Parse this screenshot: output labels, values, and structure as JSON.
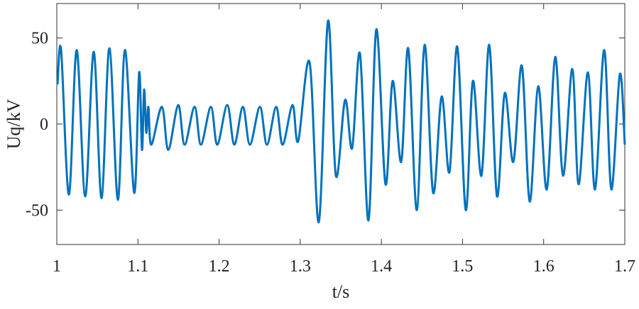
{
  "chart_data": {
    "type": "line",
    "xlabel": "t/s",
    "ylabel": "Uq/kV",
    "xlim": [
      1,
      1.7
    ],
    "ylim": [
      -70,
      70
    ],
    "xticks": [
      1,
      1.1,
      1.2,
      1.3,
      1.4,
      1.5,
      1.6,
      1.7
    ],
    "yticks": [
      -50,
      0,
      50
    ],
    "series": [
      {
        "color": "#0072BD",
        "x": [
          1.0009,
          1.0053,
          1.0149,
          1.0245,
          1.035,
          1.0455,
          1.0551,
          1.0648,
          1.0753,
          1.084,
          1.0954,
          1.1015,
          1.105,
          1.1076,
          1.1103,
          1.1129,
          1.1164,
          1.1295,
          1.1374,
          1.1496,
          1.1575,
          1.1698,
          1.1776,
          1.1899,
          1.1978,
          1.21,
          1.2188,
          1.2293,
          1.238,
          1.2503,
          1.259,
          1.2704,
          1.2783,
          1.2905,
          1.2975,
          1.3115,
          1.3229,
          1.3343,
          1.3439,
          1.3553,
          1.364,
          1.3736,
          1.3841,
          1.3938,
          1.4051,
          1.4139,
          1.4244,
          1.4331,
          1.4436,
          1.4533,
          1.4638,
          1.4743,
          1.4839,
          1.4935,
          1.504,
          1.5128,
          1.5233,
          1.5329,
          1.5425,
          1.5521,
          1.5626,
          1.5731,
          1.5828,
          1.5933,
          1.6038,
          1.6143,
          1.6239,
          1.6353,
          1.6431,
          1.6545,
          1.6633,
          1.6746,
          1.6834,
          1.6939,
          1.7
        ],
        "values": [
          23,
          43,
          -41,
          43,
          -42,
          42,
          -43,
          44,
          -44,
          43,
          -40,
          30,
          -15,
          20,
          -5,
          10,
          -12,
          10,
          -15,
          11,
          -12,
          10,
          -12,
          10,
          -12,
          11,
          -12,
          10,
          -12,
          10,
          -12,
          10,
          -12,
          11,
          -10,
          36,
          -57,
          60,
          -30,
          14,
          -14,
          41,
          -56,
          55,
          -35,
          25,
          -22,
          44,
          -50,
          46,
          -40,
          16,
          -28,
          45,
          -50,
          25,
          -30,
          46,
          -42,
          18,
          -22,
          34,
          -45,
          22,
          -38,
          39,
          -30,
          32,
          -35,
          30,
          -38,
          43,
          -38,
          29,
          -12
        ]
      }
    ]
  }
}
